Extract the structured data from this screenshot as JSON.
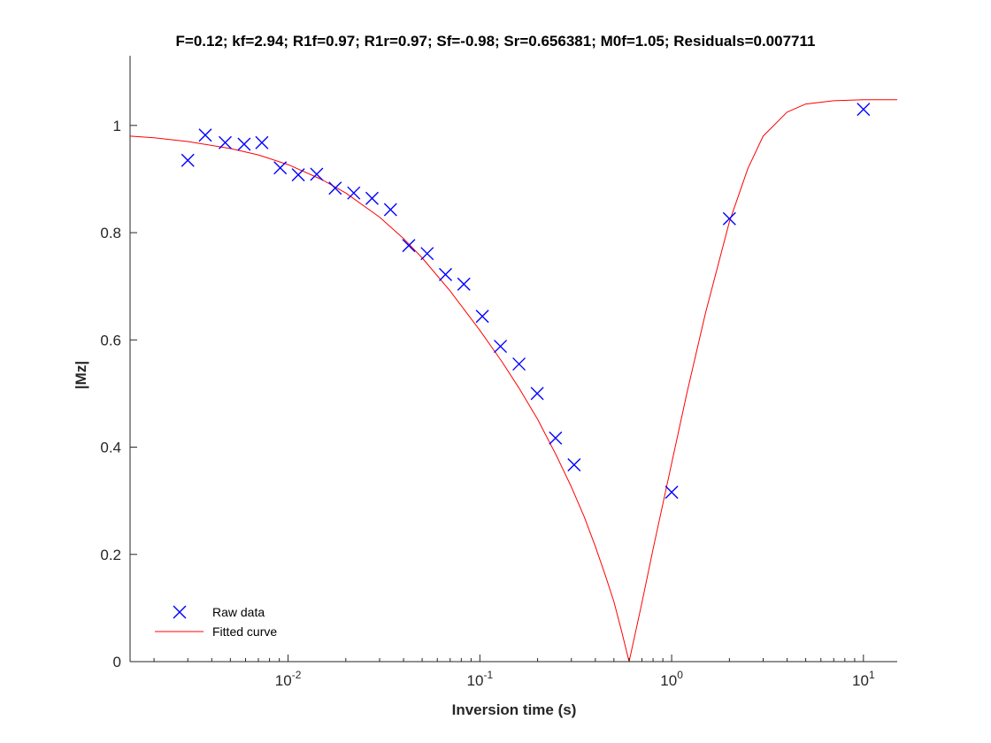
{
  "chart_data": {
    "type": "scatter",
    "title": "F=0.12; kf=2.94; R1f=0.97; R1r=0.97; Sf=-0.98; Sr=0.656381; M0f=1.05; Residuals=0.007711",
    "xlabel": "Inversion time (s)",
    "ylabel": "|Mz|",
    "xscale": "log",
    "xlim": [
      0.0015,
      15
    ],
    "ylim": [
      0,
      1.13
    ],
    "x_ticks": [
      {
        "value": 0.01,
        "base": "10",
        "exp": "-2"
      },
      {
        "value": 0.1,
        "base": "10",
        "exp": "-1"
      },
      {
        "value": 1,
        "base": "10",
        "exp": "0"
      },
      {
        "value": 10,
        "base": "10",
        "exp": "1"
      }
    ],
    "y_ticks": [
      {
        "value": 0,
        "label": "0"
      },
      {
        "value": 0.2,
        "label": "0.2"
      },
      {
        "value": 0.4,
        "label": "0.4"
      },
      {
        "value": 0.6,
        "label": "0.6"
      },
      {
        "value": 0.8,
        "label": "0.8"
      },
      {
        "value": 1,
        "label": "1"
      }
    ],
    "grid": false,
    "legend_position": "bottom-left",
    "series": [
      {
        "name": "Raw data",
        "kind": "markers",
        "marker": "x",
        "color": "#0000ff",
        "x": [
          0.003,
          0.0037,
          0.0047,
          0.0059,
          0.0073,
          0.0091,
          0.0113,
          0.0141,
          0.0176,
          0.022,
          0.0274,
          0.0342,
          0.0426,
          0.0531,
          0.0662,
          0.0825,
          0.103,
          0.128,
          0.16,
          0.199,
          0.248,
          0.31,
          1.0,
          2.0,
          10.0
        ],
        "y": [
          0.935,
          0.982,
          0.968,
          0.965,
          0.968,
          0.921,
          0.908,
          0.909,
          0.883,
          0.874,
          0.864,
          0.843,
          0.776,
          0.761,
          0.722,
          0.704,
          0.644,
          0.588,
          0.555,
          0.5,
          0.417,
          0.367,
          0.316,
          0.826,
          1.03
        ]
      },
      {
        "name": "Fitted curve",
        "kind": "line",
        "color": "#ff0000",
        "x": [
          0.0015,
          0.002,
          0.003,
          0.005,
          0.007,
          0.01,
          0.015,
          0.02,
          0.03,
          0.04,
          0.05,
          0.07,
          0.1,
          0.13,
          0.16,
          0.2,
          0.25,
          0.3,
          0.35,
          0.4,
          0.45,
          0.5,
          0.55,
          0.6,
          0.7,
          0.8,
          1.0,
          1.2,
          1.5,
          2.0,
          2.5,
          3.0,
          4.0,
          5.0,
          7.0,
          10.0,
          15.0
        ],
        "y": [
          0.98,
          0.977,
          0.97,
          0.957,
          0.945,
          0.927,
          0.899,
          0.874,
          0.829,
          0.789,
          0.753,
          0.691,
          0.618,
          0.56,
          0.51,
          0.452,
          0.385,
          0.326,
          0.27,
          0.215,
          0.162,
          0.112,
          0.055,
          0.0,
          0.11,
          0.21,
          0.37,
          0.5,
          0.65,
          0.82,
          0.92,
          0.98,
          1.025,
          1.04,
          1.046,
          1.048,
          1.048
        ]
      }
    ]
  }
}
